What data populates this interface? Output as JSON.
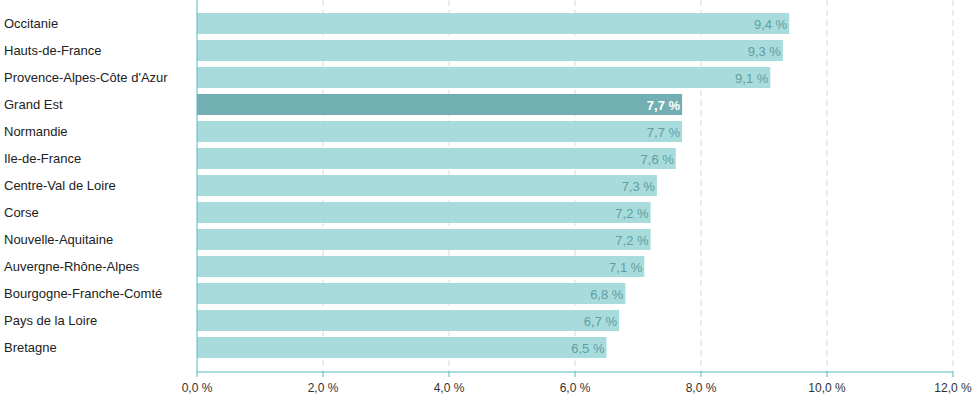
{
  "chart_data": {
    "type": "bar",
    "orientation": "horizontal",
    "categories": [
      "Occitanie",
      "Hauts-de-France",
      "Provence-Alpes-Côte d'Azur",
      "Grand Est",
      "Normandie",
      "Ile-de-France",
      "Centre-Val de Loire",
      "Corse",
      "Nouvelle-Aquitaine",
      "Auvergne-Rhône-Alpes",
      "Bourgogne-Franche-Comté",
      "Pays de la Loire",
      "Bretagne"
    ],
    "values": [
      9.4,
      9.3,
      9.1,
      7.7,
      7.7,
      7.6,
      7.3,
      7.2,
      7.2,
      7.1,
      6.8,
      6.7,
      6.5
    ],
    "value_labels": [
      "9,4 %",
      "9,3 %",
      "9,1 %",
      "7,7 %",
      "7,7 %",
      "7,6 %",
      "7,3 %",
      "7,2 %",
      "7,2 %",
      "7,1 %",
      "6,8 %",
      "6,7 %",
      "6,5 %"
    ],
    "colors": [
      "#a8dcdc",
      "#a8dcdc",
      "#a8dcdc",
      "#72afb2",
      "#a8dcdc",
      "#a8dcdc",
      "#a8dcdc",
      "#a8dcdc",
      "#a8dcdc",
      "#a8dcdc",
      "#a8dcdc",
      "#a8dcdc",
      "#a8dcdc"
    ],
    "xlim": [
      0,
      12
    ],
    "xticks": [
      {
        "value": 0,
        "label": "0,0 %"
      },
      {
        "value": 2,
        "label": "2,0 %"
      },
      {
        "value": 4,
        "label": "4,0 %"
      },
      {
        "value": 6,
        "label": "6,0 %"
      },
      {
        "value": 8,
        "label": "8,0 %"
      },
      {
        "value": 10,
        "label": "10,0 %"
      },
      {
        "value": 12,
        "label": "12,0 %"
      }
    ],
    "grid": true,
    "data_labels": true
  }
}
